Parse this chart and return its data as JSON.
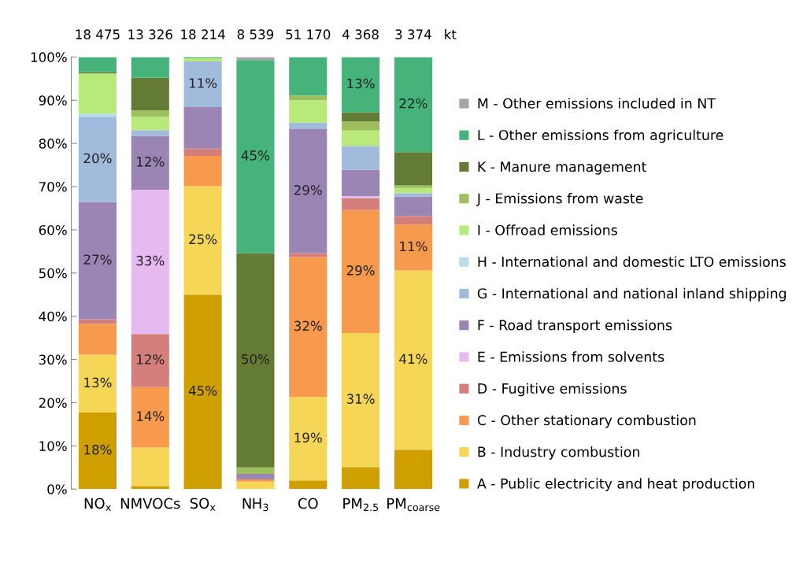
{
  "chart_data": {
    "type": "bar",
    "stacked": true,
    "categories": [
      "NO$_{x}$",
      "NMVOCs",
      "SO$_{x}$",
      "NH$_{3}$",
      "CO",
      "PM$_{2.5}$",
      "PM$_{coarse}$"
    ],
    "ylim": [
      0,
      100
    ],
    "yticks": [
      {
        "value": 0,
        "label": "0%"
      },
      {
        "value": 10,
        "label": "10%"
      },
      {
        "value": 20,
        "label": "20%"
      },
      {
        "value": 30,
        "label": "30%"
      },
      {
        "value": 40,
        "label": "40%"
      },
      {
        "value": 50,
        "label": "50%"
      },
      {
        "value": 60,
        "label": "60%"
      },
      {
        "value": 70,
        "label": "70%"
      },
      {
        "value": 80,
        "label": "80%"
      },
      {
        "value": 90,
        "label": "90%"
      },
      {
        "value": 100,
        "label": "100%"
      }
    ],
    "series": [
      {
        "name": "A - Public electricity and heat production",
        "color": "#cf9f00",
        "values": [
          17.7,
          0.7,
          45.0,
          0,
          2.0,
          5.1,
          9.1
        ],
        "value_labels": [
          "18%",
          null,
          "45%",
          null,
          null,
          null,
          null
        ]
      },
      {
        "name": "B - Industry combustion",
        "color": "#f6d656",
        "values": [
          13.4,
          8.9,
          25.1,
          1.7,
          19.3,
          31.0,
          41.5
        ],
        "value_labels": [
          "13%",
          null,
          "25%",
          null,
          "19%",
          "31%",
          "41%"
        ]
      },
      {
        "name": "C - Other stationary combustion",
        "color": "#f79a4d",
        "values": [
          7.1,
          14.0,
          7.0,
          0.5,
          32.4,
          28.5,
          10.6
        ],
        "value_labels": [
          null,
          "14%",
          null,
          null,
          "32%",
          "29%",
          "11%"
        ]
      },
      {
        "name": "D - Fugitive emissions",
        "color": "#d47f7c",
        "values": [
          1.1,
          12.3,
          1.7,
          0,
          0.9,
          2.7,
          2.0
        ],
        "value_labels": [
          null,
          "12%",
          null,
          null,
          null,
          null,
          null
        ]
      },
      {
        "name": "E - Emissions from solvents",
        "color": "#e6b9f1",
        "values": [
          0,
          33.4,
          0,
          0,
          0,
          0.5,
          0
        ],
        "value_labels": [
          null,
          "33%",
          null,
          null,
          null,
          null,
          null
        ]
      },
      {
        "name": "F - Road transport emissions",
        "color": "#9b85b4",
        "values": [
          27.1,
          12.4,
          9.6,
          1.3,
          28.7,
          6.1,
          4.5
        ],
        "value_labels": [
          "27%",
          "12%",
          null,
          null,
          "29%",
          null,
          null
        ]
      },
      {
        "name": "G - International and national inland shipping",
        "color": "#a0bbdc",
        "values": [
          19.8,
          1.4,
          10.6,
          0,
          1.5,
          5.5,
          0.8
        ],
        "value_labels": [
          "20%",
          null,
          "11%",
          null,
          null,
          null,
          null
        ]
      },
      {
        "name": "H - International and domestic LTO emissions",
        "color": "#b7dde8",
        "values": [
          0.7,
          0,
          0,
          0,
          0,
          0,
          0
        ],
        "value_labels": [
          null,
          null,
          null,
          null,
          null,
          null,
          null
        ]
      },
      {
        "name": "I - Offroad emissions",
        "color": "#b9e97a",
        "values": [
          9.3,
          3.1,
          0.7,
          0,
          5.2,
          3.6,
          1.2
        ],
        "value_labels": [
          null,
          null,
          null,
          null,
          null,
          null,
          null
        ]
      },
      {
        "name": "J - Emissions from waste",
        "color": "#9dbf5d",
        "values": [
          0,
          1.5,
          0,
          1.5,
          1.1,
          2.1,
          0.6
        ],
        "value_labels": [
          null,
          null,
          null,
          null,
          null,
          null,
          null
        ]
      },
      {
        "name": "K - Manure management",
        "color": "#647b35",
        "values": [
          0.3,
          7.5,
          0,
          49.6,
          0,
          2.1,
          7.7
        ],
        "value_labels": [
          null,
          null,
          null,
          "50%",
          null,
          null,
          null
        ]
      },
      {
        "name": "L - Other emissions from agriculture",
        "color": "#46b37b",
        "values": [
          3.5,
          4.8,
          0.3,
          44.7,
          8.9,
          12.8,
          22.0
        ],
        "value_labels": [
          null,
          null,
          null,
          "45%",
          null,
          "13%",
          "22%"
        ]
      },
      {
        "name": "M - Other emissions included in NT",
        "color": "#a5a5a5",
        "values": [
          0,
          0,
          0,
          0.7,
          0,
          0,
          0
        ],
        "value_labels": [
          null,
          null,
          null,
          null,
          null,
          null,
          null
        ]
      }
    ],
    "annotations": [
      "18 475",
      "13 326",
      "18 214",
      "8 539",
      "51 170",
      "4 368",
      "3 374",
      "kt"
    ],
    "legend": "right",
    "grid": false
  }
}
